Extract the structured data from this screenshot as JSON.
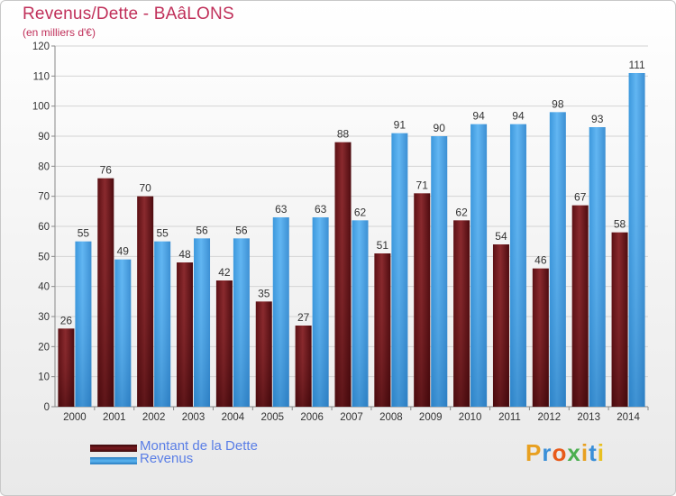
{
  "chart_data": {
    "type": "bar",
    "title": "Revenus/Dette - BAâLONS",
    "subtitle": "(en milliers d'€)",
    "categories": [
      "2000",
      "2001",
      "2002",
      "2003",
      "2004",
      "2005",
      "2006",
      "2007",
      "2008",
      "2009",
      "2010",
      "2011",
      "2012",
      "2013",
      "2014"
    ],
    "series": [
      {
        "name": "Montant de la Dette",
        "color": "#7a1a1f",
        "values": [
          26,
          76,
          70,
          48,
          42,
          35,
          27,
          88,
          51,
          71,
          62,
          54,
          46,
          67,
          58
        ]
      },
      {
        "name": "Revenus",
        "color": "#4aa3e6",
        "values": [
          55,
          49,
          55,
          56,
          56,
          63,
          63,
          62,
          91,
          90,
          94,
          94,
          98,
          93,
          111
        ]
      }
    ],
    "ylim": [
      0,
      120
    ],
    "yticks": [
      0,
      10,
      20,
      30,
      40,
      50,
      60,
      70,
      80,
      90,
      100,
      110,
      120
    ],
    "grid": true,
    "legend_position": "bottom-left"
  },
  "logo": {
    "text": "Proxiti",
    "colors": [
      "#e8a020",
      "#3a8fd8",
      "#e85a1a",
      "#4caf50",
      "#e8a020",
      "#3a8fd8",
      "#e8c020"
    ]
  }
}
